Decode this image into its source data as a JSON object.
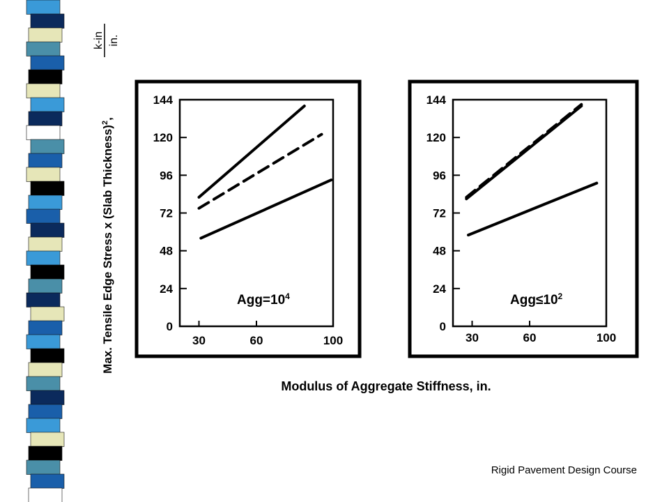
{
  "decor": {
    "stripe_colors": [
      "#3a9ad8",
      "#0b2a5c",
      "#e6e6b8",
      "#4a8fa8",
      "#1a5faa",
      "#000000",
      "#e6e6b8",
      "#3a9ad8",
      "#0b2a5c",
      "#ffffff",
      "#4a8fa8",
      "#1a5faa",
      "#e6e6b8",
      "#000000",
      "#3a9ad8",
      "#1a5faa",
      "#0b2a5c",
      "#e6e6b8",
      "#3a9ad8",
      "#000000",
      "#4a8fa8",
      "#0b2a5c",
      "#e6e6b8",
      "#1a5faa",
      "#3a9ad8",
      "#000000",
      "#e6e6b8",
      "#4a8fa8",
      "#0b2a5c",
      "#1a5faa",
      "#3a9ad8",
      "#e6e6b8",
      "#000000",
      "#4a8fa8",
      "#1a5faa",
      "#ffffff"
    ]
  },
  "y_axis_title": "Max. Tensile Edge Stress x (Slab Thickness)",
  "y_axis_title_sup": "2",
  "y_axis_unit_numerator": "k-in",
  "y_axis_unit_denominator": "in.",
  "x_axis_title": "Modulus of Aggregate Stiffness, in.",
  "footer": "Rigid Pavement Design Course",
  "chart_data": [
    {
      "type": "line",
      "panel_label_base": "Agg=10",
      "panel_label_sup": "4",
      "x_ticks": [
        "30",
        "60",
        "100"
      ],
      "y_ticks": [
        "0",
        "24",
        "48",
        "72",
        "96",
        "120",
        "144"
      ],
      "xlim": [
        20,
        100
      ],
      "ylim": [
        0,
        144
      ],
      "grid": false,
      "series": [
        {
          "style": "solid",
          "x": [
            30,
            85
          ],
          "y": [
            82,
            140
          ]
        },
        {
          "style": "dashed",
          "x": [
            30,
            94
          ],
          "y": [
            75,
            122
          ]
        },
        {
          "style": "solid",
          "x": [
            31,
            99
          ],
          "y": [
            56,
            93
          ]
        }
      ]
    },
    {
      "type": "line",
      "panel_label_base": "Agg",
      "panel_label_symbol": "≤",
      "panel_label_num": "10",
      "panel_label_sup": "2",
      "x_ticks": [
        "30",
        "60",
        "100"
      ],
      "y_ticks": [
        "0",
        "24",
        "48",
        "72",
        "96",
        "120",
        "144"
      ],
      "xlim": [
        20,
        100
      ],
      "ylim": [
        0,
        144
      ],
      "grid": false,
      "series": [
        {
          "style": "solid",
          "x": [
            27,
            87
          ],
          "y": [
            81,
            140
          ]
        },
        {
          "style": "dashed",
          "x": [
            27,
            87
          ],
          "y": [
            82,
            141
          ]
        },
        {
          "style": "solid",
          "x": [
            28,
            95
          ],
          "y": [
            58,
            91
          ]
        }
      ]
    }
  ]
}
